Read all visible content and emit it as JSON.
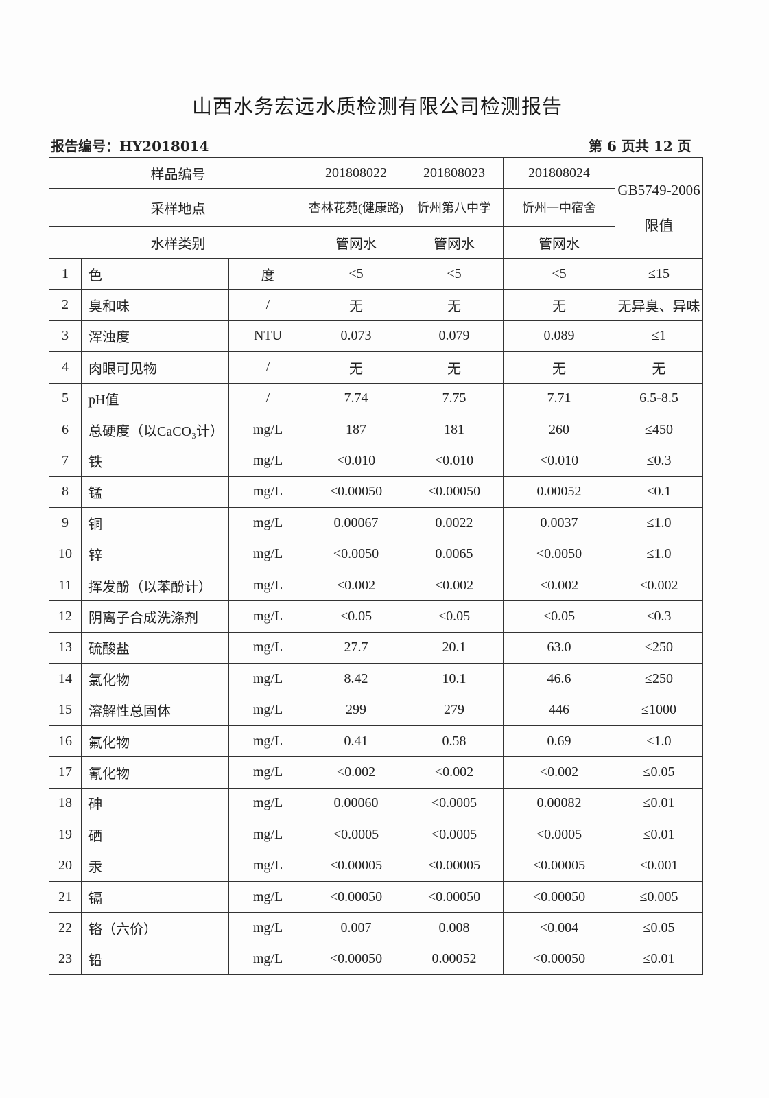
{
  "title": "山西水务宏远水质检测有限公司检测报告",
  "report_no": "报告编号：HY2018014",
  "page_info": "第 6 页共 12 页",
  "header": {
    "sample_no_label": "样品编号",
    "location_label": "采样地点",
    "type_label": "水样类别",
    "standard_label": "GB5749-2006 限值",
    "samples": [
      {
        "no": "201808022",
        "location": "杏林花苑(健康路)",
        "type": "管网水"
      },
      {
        "no": "201808023",
        "location": "忻州第八中学",
        "type": "管网水"
      },
      {
        "no": "201808024",
        "location": "忻州一中宿舍",
        "type": "管网水"
      }
    ]
  },
  "rows": [
    {
      "idx": "1",
      "item": "色",
      "unit": "度",
      "v": [
        "<5",
        "<5",
        "<5"
      ],
      "limit": "≤15"
    },
    {
      "idx": "2",
      "item": "臭和味",
      "unit": "/",
      "v": [
        "无",
        "无",
        "无"
      ],
      "limit": "无异臭、异味"
    },
    {
      "idx": "3",
      "item": "浑浊度",
      "unit": "NTU",
      "v": [
        "0.073",
        "0.079",
        "0.089"
      ],
      "limit": "≤1"
    },
    {
      "idx": "4",
      "item": "肉眼可见物",
      "unit": "/",
      "v": [
        "无",
        "无",
        "无"
      ],
      "limit": "无"
    },
    {
      "idx": "5",
      "item": "pH值",
      "unit": "/",
      "v": [
        "7.74",
        "7.75",
        "7.71"
      ],
      "limit": "6.5-8.5"
    },
    {
      "idx": "6",
      "item": "总硬度（以CaCO₃计）",
      "unit": "mg/L",
      "v": [
        "187",
        "181",
        "260"
      ],
      "limit": "≤450"
    },
    {
      "idx": "7",
      "item": "铁",
      "unit": "mg/L",
      "v": [
        "<0.010",
        "<0.010",
        "<0.010"
      ],
      "limit": "≤0.3"
    },
    {
      "idx": "8",
      "item": "锰",
      "unit": "mg/L",
      "v": [
        "<0.00050",
        "<0.00050",
        "0.00052"
      ],
      "limit": "≤0.1"
    },
    {
      "idx": "9",
      "item": "铜",
      "unit": "mg/L",
      "v": [
        "0.00067",
        "0.0022",
        "0.0037"
      ],
      "limit": "≤1.0"
    },
    {
      "idx": "10",
      "item": "锌",
      "unit": "mg/L",
      "v": [
        "<0.0050",
        "0.0065",
        "<0.0050"
      ],
      "limit": "≤1.0"
    },
    {
      "idx": "11",
      "item": "挥发酚（以苯酚计）",
      "unit": "mg/L",
      "v": [
        "<0.002",
        "<0.002",
        "<0.002"
      ],
      "limit": "≤0.002"
    },
    {
      "idx": "12",
      "item": "阴离子合成洗涤剂",
      "unit": "mg/L",
      "v": [
        "<0.05",
        "<0.05",
        "<0.05"
      ],
      "limit": "≤0.3"
    },
    {
      "idx": "13",
      "item": "硫酸盐",
      "unit": "mg/L",
      "v": [
        "27.7",
        "20.1",
        "63.0"
      ],
      "limit": "≤250"
    },
    {
      "idx": "14",
      "item": "氯化物",
      "unit": "mg/L",
      "v": [
        "8.42",
        "10.1",
        "46.6"
      ],
      "limit": "≤250"
    },
    {
      "idx": "15",
      "item": "溶解性总固体",
      "unit": "mg/L",
      "v": [
        "299",
        "279",
        "446"
      ],
      "limit": "≤1000"
    },
    {
      "idx": "16",
      "item": "氟化物",
      "unit": "mg/L",
      "v": [
        "0.41",
        "0.58",
        "0.69"
      ],
      "limit": "≤1.0"
    },
    {
      "idx": "17",
      "item": "氰化物",
      "unit": "mg/L",
      "v": [
        "<0.002",
        "<0.002",
        "<0.002"
      ],
      "limit": "≤0.05"
    },
    {
      "idx": "18",
      "item": "砷",
      "unit": "mg/L",
      "v": [
        "0.00060",
        "<0.0005",
        "0.00082"
      ],
      "limit": "≤0.01"
    },
    {
      "idx": "19",
      "item": "硒",
      "unit": "mg/L",
      "v": [
        "<0.0005",
        "<0.0005",
        "<0.0005"
      ],
      "limit": "≤0.01"
    },
    {
      "idx": "20",
      "item": "汞",
      "unit": "mg/L",
      "v": [
        "<0.00005",
        "<0.00005",
        "<0.00005"
      ],
      "limit": "≤0.001"
    },
    {
      "idx": "21",
      "item": "镉",
      "unit": "mg/L",
      "v": [
        "<0.00050",
        "<0.00050",
        "<0.00050"
      ],
      "limit": "≤0.005"
    },
    {
      "idx": "22",
      "item": "铬（六价）",
      "unit": "mg/L",
      "v": [
        "0.007",
        "0.008",
        "<0.004"
      ],
      "limit": "≤0.05"
    },
    {
      "idx": "23",
      "item": "铅",
      "unit": "mg/L",
      "v": [
        "<0.00050",
        "0.00052",
        "<0.00050"
      ],
      "limit": "≤0.01"
    }
  ]
}
